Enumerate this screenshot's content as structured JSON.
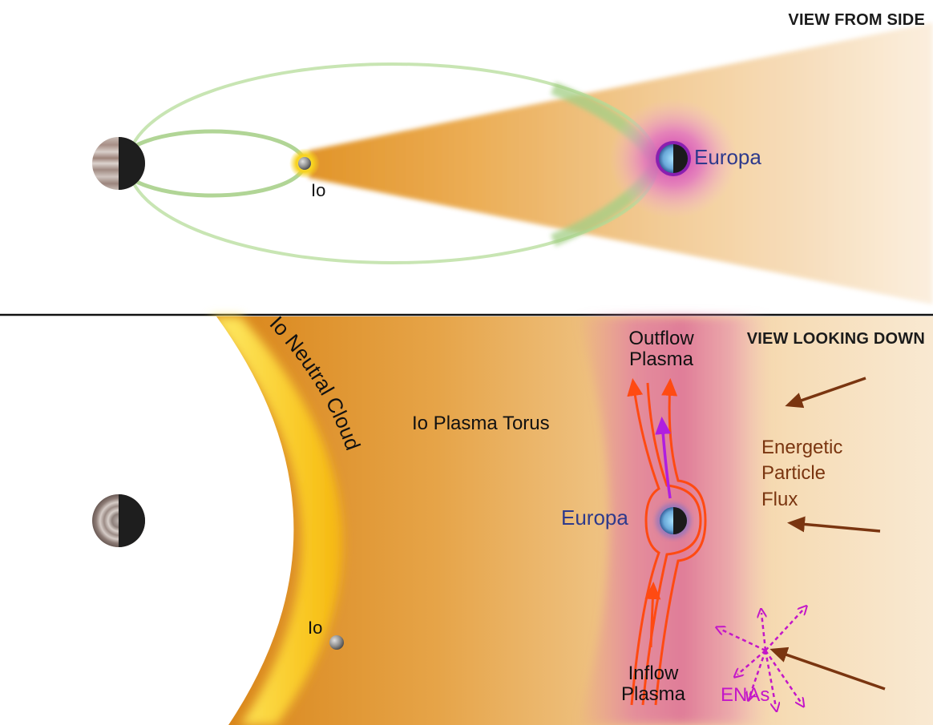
{
  "top_panel": {
    "title": "VIEW FROM SIDE",
    "europa_label": "Europa",
    "io_label": "Io"
  },
  "bottom_panel": {
    "title": "VIEW LOOKING DOWN",
    "io_neutral_cloud_label": "Io Neutral Cloud",
    "io_plasma_torus_label": "Io Plasma Torus",
    "outflow_label_line1": "Outflow",
    "outflow_label_line2": "Plasma",
    "inflow_label_line1": "Inflow",
    "inflow_label_line2": "Plasma",
    "europa_label": "Europa",
    "io_label": "Io",
    "flux_line1": "Energetic",
    "flux_line2": "Particle",
    "flux_line3": "Flux",
    "enas_label": "ENAs"
  },
  "colors": {
    "torus_inner": "#d98a1c",
    "torus_outer": "#f7e5c6",
    "neutral_cloud": "#f9c315",
    "europa_glow": "#e03aa8",
    "orbit_green": "#9fcf7d",
    "flow_lines": "#ff4a12",
    "europa_path": "#b01ee0",
    "flux_arrows": "#7a3510",
    "enas": "#c316c8",
    "europa_text": "#2e3a8c"
  }
}
